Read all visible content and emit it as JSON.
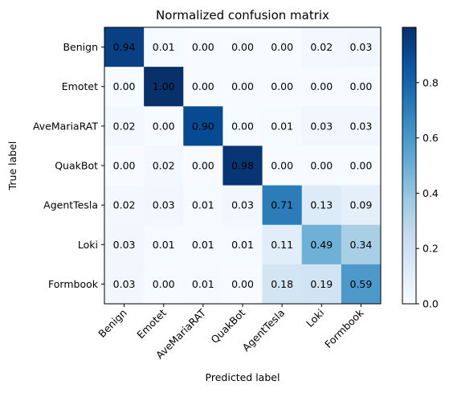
{
  "chart_data": {
    "type": "heatmap",
    "title": "Normalized confusion matrix",
    "xlabel": "Predicted label",
    "ylabel": "True label",
    "x_categories": [
      "Benign",
      "Emotet",
      "AveMariaRAT",
      "QuakBot",
      "AgentTesla",
      "Loki",
      "Formbook"
    ],
    "y_categories": [
      "Benign",
      "Emotet",
      "AveMariaRAT",
      "QuakBot",
      "AgentTesla",
      "Loki",
      "Formbook"
    ],
    "values": [
      [
        0.94,
        0.01,
        0.0,
        0.0,
        0.0,
        0.02,
        0.03
      ],
      [
        0.0,
        1.0,
        0.0,
        0.0,
        0.0,
        0.0,
        0.0
      ],
      [
        0.02,
        0.0,
        0.9,
        0.0,
        0.01,
        0.03,
        0.03
      ],
      [
        0.0,
        0.02,
        0.0,
        0.98,
        0.0,
        0.0,
        0.0
      ],
      [
        0.02,
        0.03,
        0.01,
        0.03,
        0.71,
        0.13,
        0.09
      ],
      [
        0.03,
        0.01,
        0.01,
        0.01,
        0.11,
        0.49,
        0.34
      ],
      [
        0.03,
        0.0,
        0.01,
        0.0,
        0.18,
        0.19,
        0.59
      ]
    ],
    "colormap": "Blues",
    "colorbar": {
      "range": [
        0.0,
        1.0
      ],
      "ticks": [
        "0.0",
        "0.2",
        "0.4",
        "0.6",
        "0.8"
      ]
    }
  }
}
